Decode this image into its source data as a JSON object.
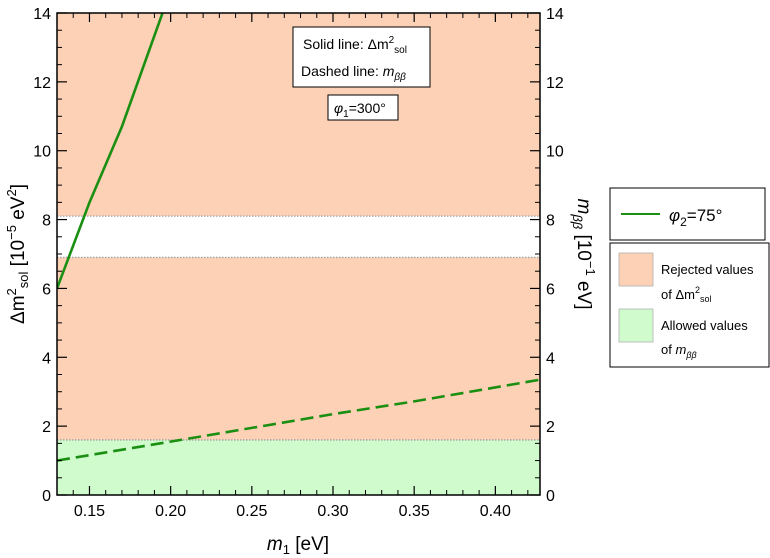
{
  "chart_data": {
    "type": "line",
    "x_range": [
      0.13,
      0.4275
    ],
    "y_range": [
      0,
      14
    ],
    "xlabel_var": "m",
    "xlabel_sub": "1",
    "xlabel_unit": " [eV]",
    "ylabel_left": {
      "a": "Δm",
      "sup": "2",
      "sub": "sol",
      "b": " [10",
      "exp": "−5",
      "c": " eV",
      "sup2": "2",
      "d": "]"
    },
    "ylabel_right": {
      "var": "m",
      "sub": "ββ",
      "a": " [10",
      "exp": "−1",
      "b": " eV]"
    },
    "x_ticks": [
      0.15,
      0.2,
      0.25,
      0.3,
      0.35,
      0.4
    ],
    "x_tick_labels": [
      "0.15",
      "0.20",
      "0.25",
      "0.30",
      "0.35",
      "0.40"
    ],
    "y_ticks": [
      0,
      2,
      4,
      6,
      8,
      10,
      12,
      14
    ],
    "y_tick_labels": [
      "0",
      "2",
      "4",
      "6",
      "8",
      "10",
      "12",
      "14"
    ],
    "rejected_region_color": "#fdd1b6",
    "allowed_region_color": "#d0fccd",
    "line_color": "#1b8f12",
    "boundary_color": "#a0a0a0",
    "allowed_band_sol": [
      6.9,
      8.1
    ],
    "allowed_band_mbb_max": 1.6,
    "series": [
      {
        "name": "Δm²sol",
        "style": "solid",
        "x": [
          0.13,
          0.15,
          0.17,
          0.195
        ],
        "y": [
          6.0,
          8.5,
          10.7,
          14.0
        ]
      },
      {
        "name": "mββ",
        "style": "dashed",
        "x": [
          0.13,
          0.2,
          0.25,
          0.3,
          0.35,
          0.4275
        ],
        "y": [
          1.0,
          1.55,
          1.95,
          2.35,
          2.72,
          3.35
        ]
      }
    ],
    "annotations": {
      "solid_line_label": "Solid line: ",
      "solid_line_value": "Δm",
      "solid_line_sup": "2",
      "solid_line_sub": "sol",
      "dashed_line_label": "Dashed line: ",
      "dashed_line_var": "m",
      "dashed_line_sub": "ββ",
      "phi1_var": "φ",
      "phi1_sub": "1",
      "phi1_value": "=300°"
    },
    "legend": {
      "phi2_var": "φ",
      "phi2_sub": "2",
      "phi2_value": "=75°",
      "rejected_label_1": "Rejected values",
      "rejected_label_2a": "of Δm",
      "rejected_label_2sup": "2",
      "rejected_label_2sub": "sol",
      "allowed_label_1": "Allowed values",
      "allowed_label_2a": "of ",
      "allowed_label_2var": "m",
      "allowed_label_2sub": "ββ"
    }
  }
}
